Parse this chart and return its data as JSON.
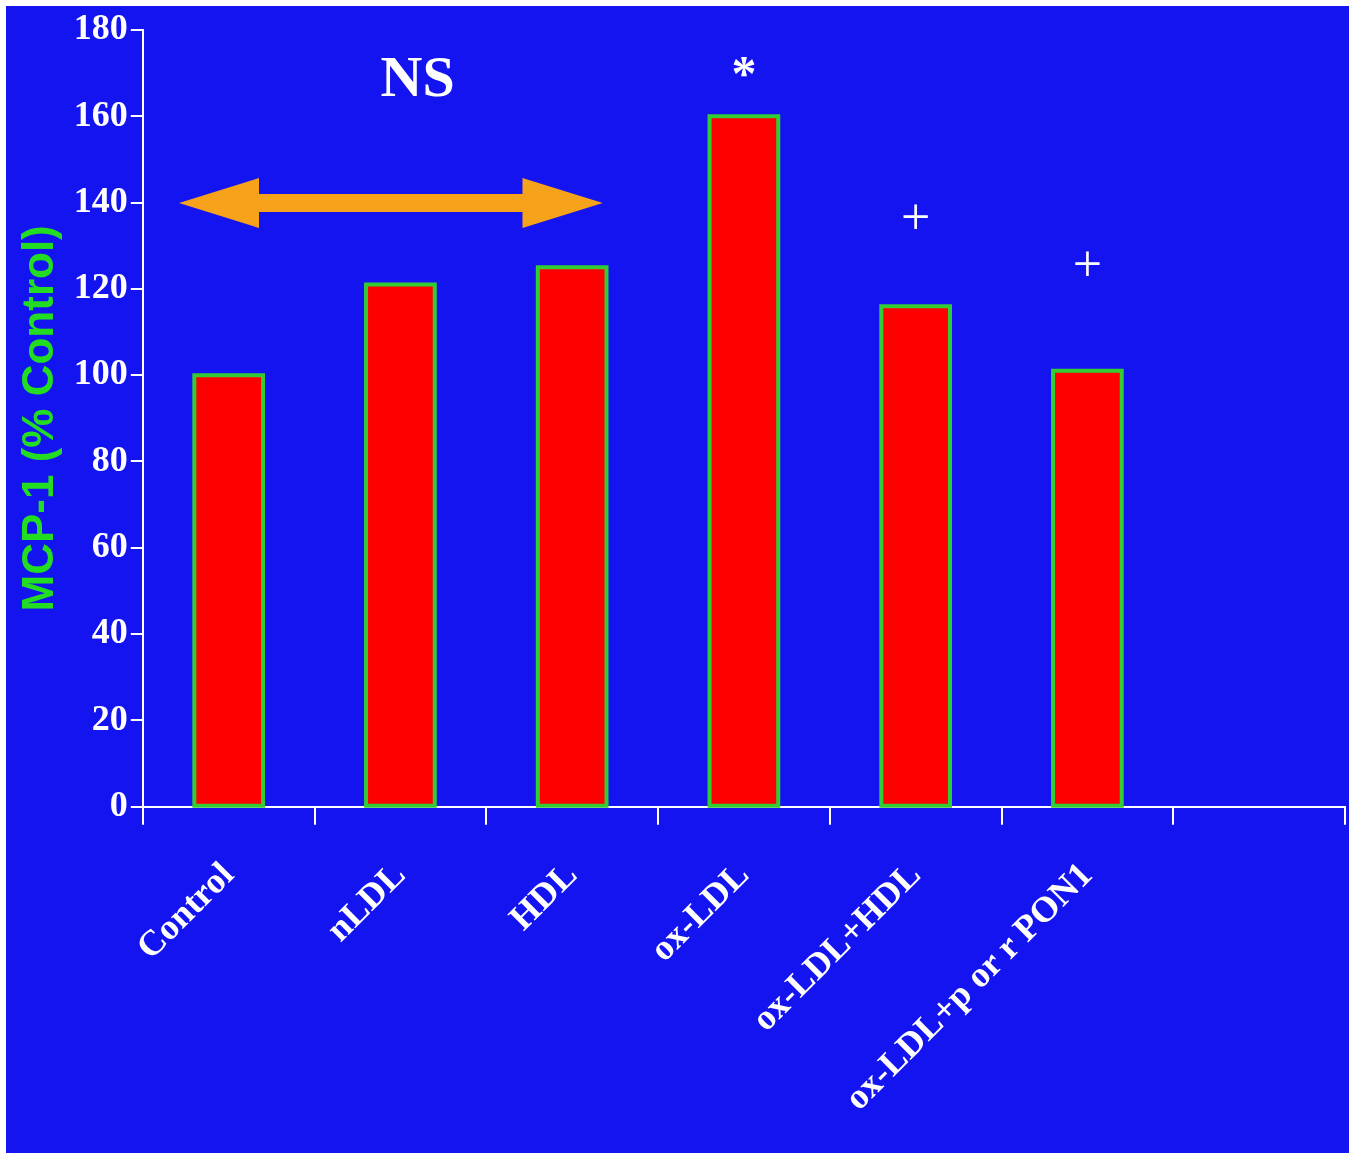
{
  "chart_data": {
    "type": "bar",
    "ylabel": "MCP-1 (% Control)",
    "categories": [
      "Control",
      "nLDL",
      "HDL",
      "ox-LDL",
      "ox-LDL+HDL",
      "ox-LDL+p or r PON1",
      null
    ],
    "values": [
      100,
      121,
      125,
      160,
      116,
      101,
      null
    ],
    "color": "#ff0000",
    "ylim": [
      0,
      180
    ],
    "yticks": [
      0,
      20,
      40,
      60,
      80,
      100,
      120,
      140,
      160,
      180
    ],
    "grid": false,
    "legend": false,
    "annotations": [
      "NS",
      "*",
      "+",
      "+"
    ]
  }
}
